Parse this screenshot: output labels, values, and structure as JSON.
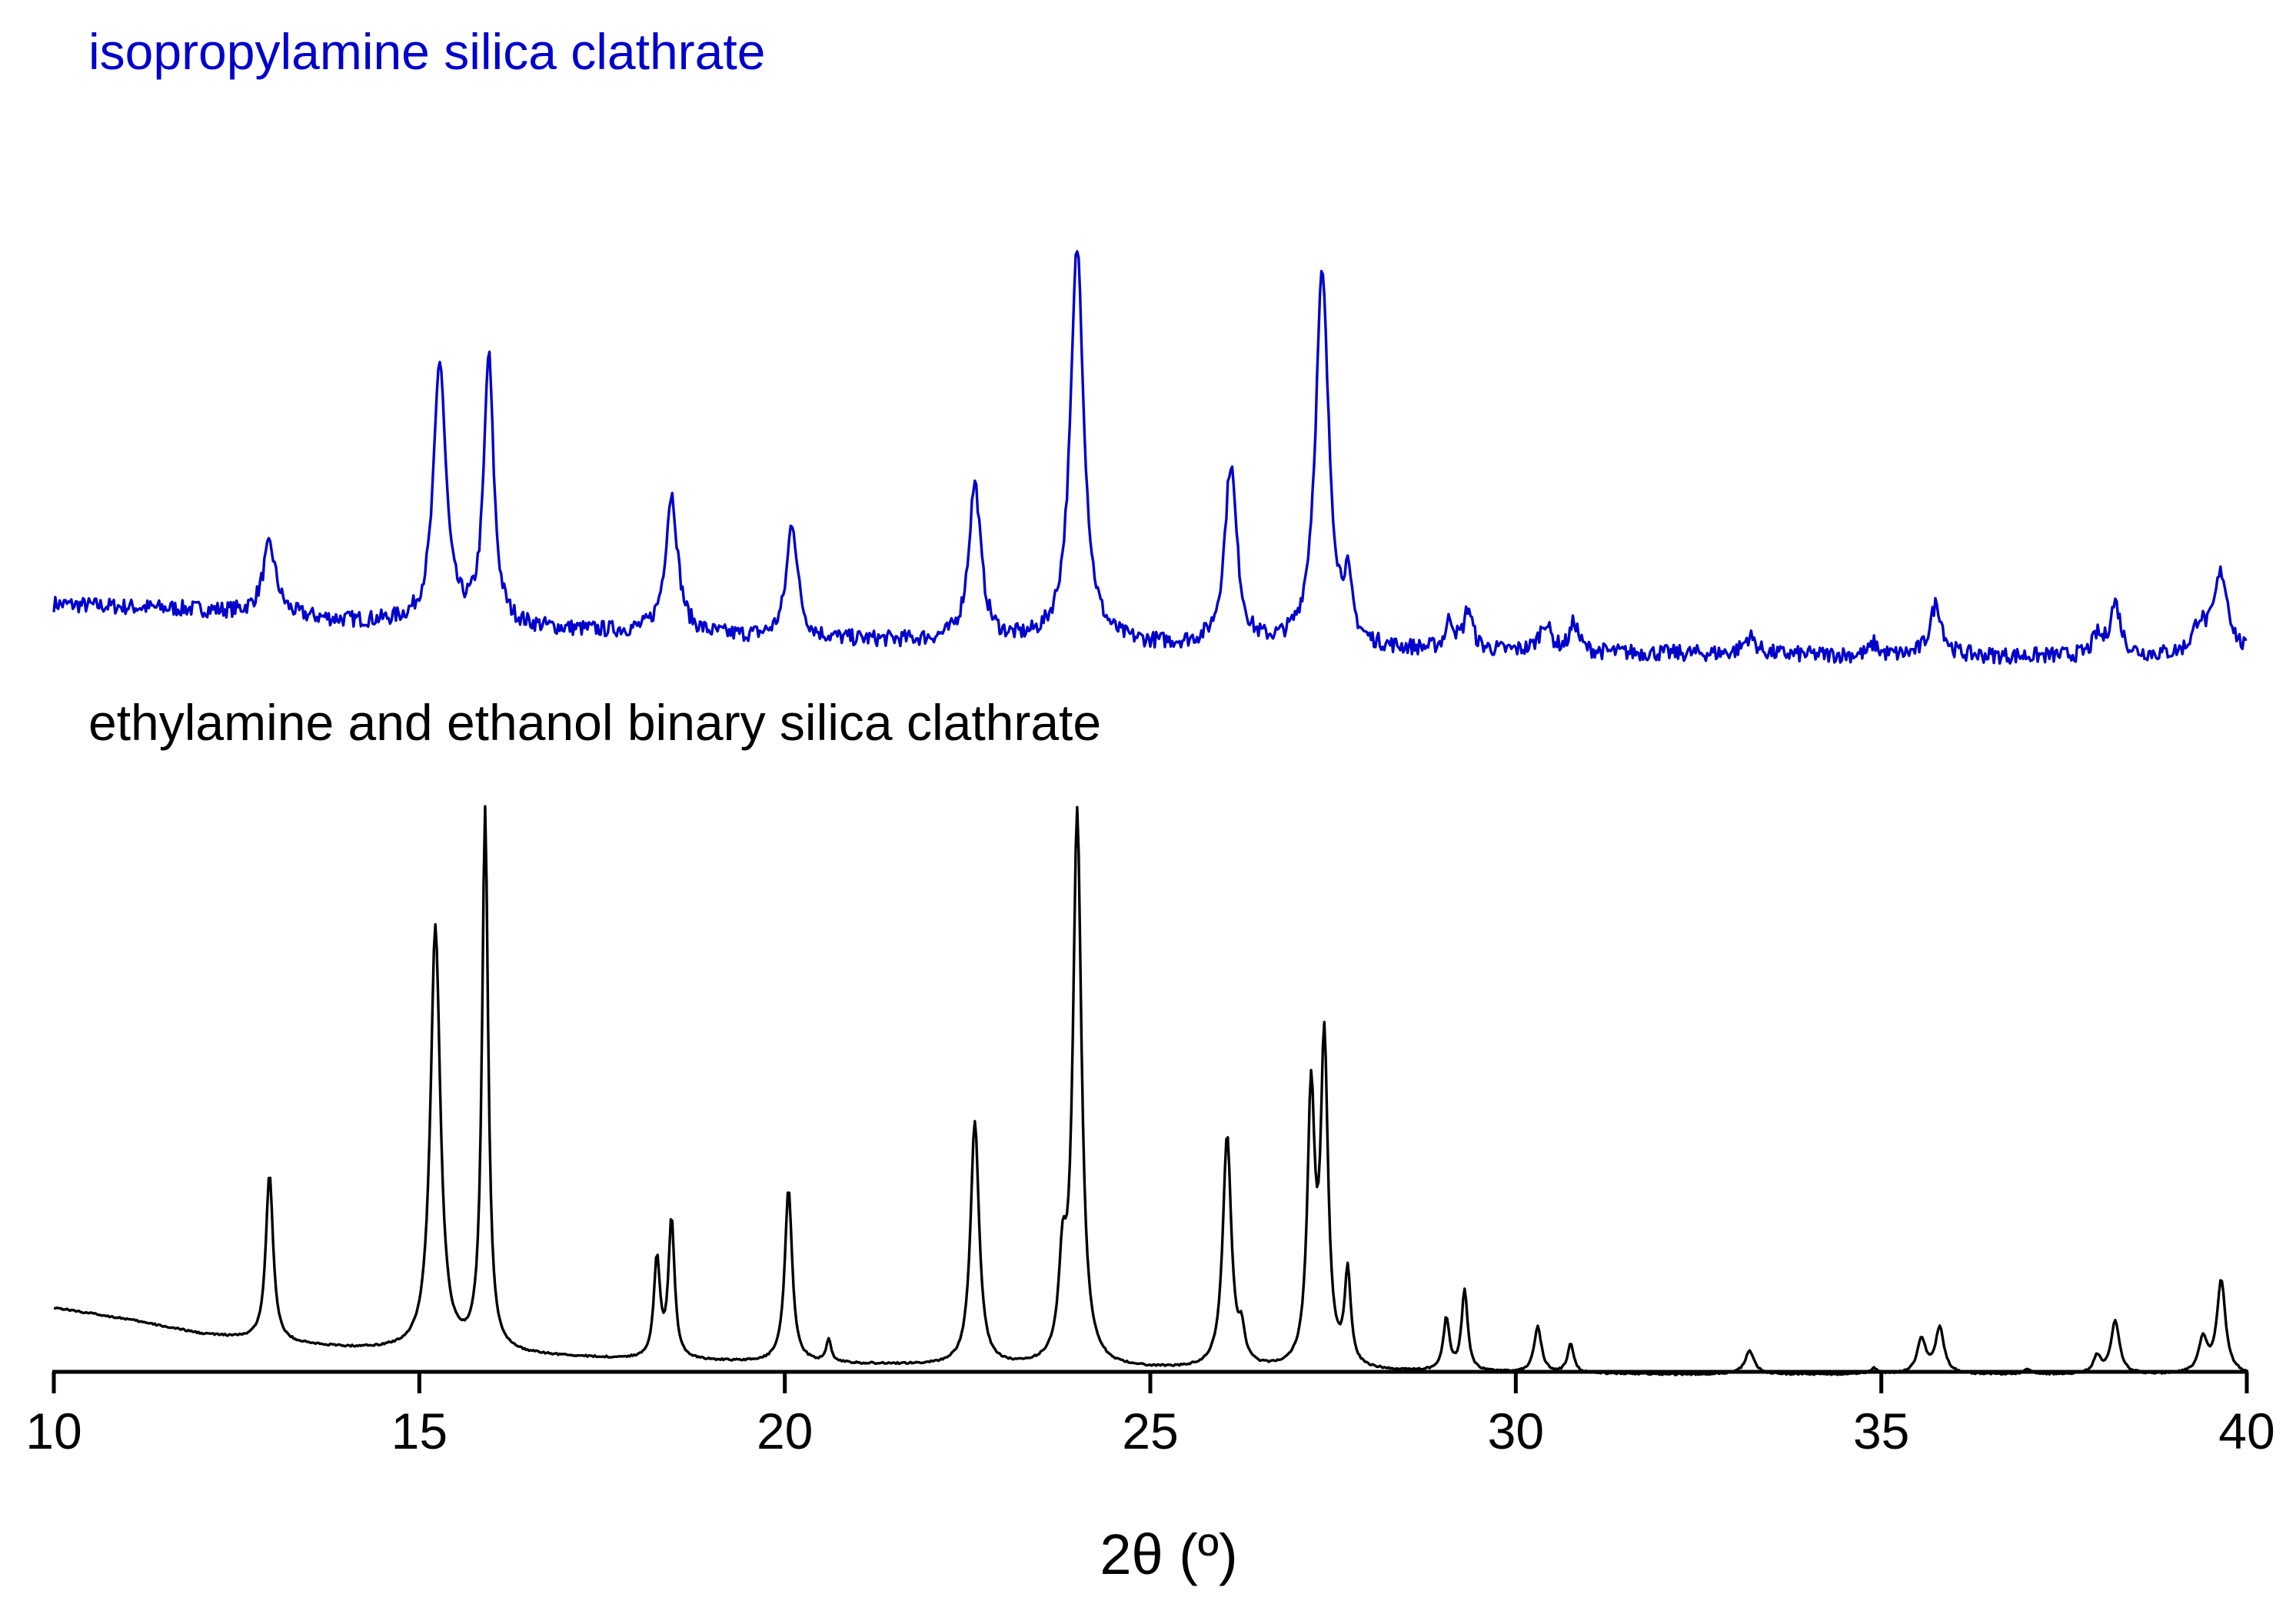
{
  "chart_data": {
    "type": "line",
    "xlabel": "2θ (º)",
    "ylabel": "",
    "xlim": [
      10,
      40
    ],
    "ylim": [
      0,
      2.3
    ],
    "x_ticks": [
      10,
      15,
      20,
      25,
      30,
      35,
      40
    ],
    "grid": false,
    "legend": "none",
    "series": [
      {
        "name": "isopropylamine silica clathrate",
        "color": "#0000cc",
        "baseline": [
          [
            10,
            1.34
          ],
          [
            12,
            1.33
          ],
          [
            14,
            1.31
          ],
          [
            16,
            1.3
          ],
          [
            18,
            1.29
          ],
          [
            20,
            1.28
          ],
          [
            24,
            1.27
          ],
          [
            28,
            1.26
          ],
          [
            32,
            1.255
          ],
          [
            36,
            1.25
          ],
          [
            40,
            1.25
          ]
        ],
        "peaks": [
          {
            "x": 12.95,
            "h": 0.12,
            "w": 0.11
          },
          {
            "x": 15.28,
            "h": 0.45,
            "w": 0.1
          },
          {
            "x": 15.95,
            "h": 0.46,
            "w": 0.08
          },
          {
            "x": 18.45,
            "h": 0.24,
            "w": 0.1
          },
          {
            "x": 20.1,
            "h": 0.2,
            "w": 0.09
          },
          {
            "x": 22.6,
            "h": 0.27,
            "w": 0.1
          },
          {
            "x": 24.0,
            "h": 0.68,
            "w": 0.11
          },
          {
            "x": 26.1,
            "h": 0.31,
            "w": 0.1
          },
          {
            "x": 27.35,
            "h": 0.64,
            "w": 0.11
          },
          {
            "x": 27.7,
            "h": 0.09,
            "w": 0.07
          },
          {
            "x": 29.1,
            "h": 0.05,
            "w": 0.07
          },
          {
            "x": 29.35,
            "h": 0.07,
            "w": 0.07
          },
          {
            "x": 30.4,
            "h": 0.05,
            "w": 0.09
          },
          {
            "x": 30.8,
            "h": 0.05,
            "w": 0.07
          },
          {
            "x": 33.2,
            "h": 0.03,
            "w": 0.1
          },
          {
            "x": 34.9,
            "h": 0.02,
            "w": 0.06
          },
          {
            "x": 35.75,
            "h": 0.09,
            "w": 0.1
          },
          {
            "x": 38.2,
            "h": 0.09,
            "w": 0.09
          },
          {
            "x": 37.95,
            "h": 0.03,
            "w": 0.07
          },
          {
            "x": 39.65,
            "h": 0.14,
            "w": 0.12
          },
          {
            "x": 39.35,
            "h": 0.05,
            "w": 0.1
          }
        ]
      },
      {
        "name": "ethylamine and ethanol binary silica clathrate",
        "color": "#000000",
        "baseline": [
          [
            10,
            0.13
          ],
          [
            11,
            0.11
          ],
          [
            12,
            0.085
          ],
          [
            13,
            0.07
          ],
          [
            14,
            0.06
          ],
          [
            16,
            0.05
          ],
          [
            18,
            0.04
          ],
          [
            20,
            0.035
          ],
          [
            24,
            0.025
          ],
          [
            28,
            0.02
          ],
          [
            32,
            0.015
          ],
          [
            36,
            0.015
          ],
          [
            40,
            0.015
          ]
        ],
        "peaks": [
          {
            "x": 12.95,
            "h": 0.29,
            "w": 0.06
          },
          {
            "x": 15.22,
            "h": 0.73,
            "w": 0.08
          },
          {
            "x": 15.9,
            "h": 0.93,
            "w": 0.05
          },
          {
            "x": 18.25,
            "h": 0.17,
            "w": 0.05
          },
          {
            "x": 18.45,
            "h": 0.24,
            "w": 0.05
          },
          {
            "x": 20.05,
            "h": 0.3,
            "w": 0.06
          },
          {
            "x": 20.6,
            "h": 0.04,
            "w": 0.04
          },
          {
            "x": 22.6,
            "h": 0.42,
            "w": 0.07
          },
          {
            "x": 23.8,
            "h": 0.15,
            "w": 0.06
          },
          {
            "x": 24.0,
            "h": 0.95,
            "w": 0.07
          },
          {
            "x": 26.05,
            "h": 0.4,
            "w": 0.07
          },
          {
            "x": 26.25,
            "h": 0.05,
            "w": 0.05
          },
          {
            "x": 27.2,
            "h": 0.46,
            "w": 0.06
          },
          {
            "x": 27.38,
            "h": 0.55,
            "w": 0.06
          },
          {
            "x": 27.7,
            "h": 0.16,
            "w": 0.05
          },
          {
            "x": 29.05,
            "h": 0.09,
            "w": 0.05
          },
          {
            "x": 29.3,
            "h": 0.14,
            "w": 0.05
          },
          {
            "x": 30.3,
            "h": 0.08,
            "w": 0.06
          },
          {
            "x": 30.75,
            "h": 0.05,
            "w": 0.05
          },
          {
            "x": 33.2,
            "h": 0.04,
            "w": 0.08
          },
          {
            "x": 34.9,
            "h": 0.01,
            "w": 0.06
          },
          {
            "x": 35.55,
            "h": 0.06,
            "w": 0.07
          },
          {
            "x": 35.8,
            "h": 0.08,
            "w": 0.07
          },
          {
            "x": 37.0,
            "h": 0.01,
            "w": 0.05
          },
          {
            "x": 37.95,
            "h": 0.03,
            "w": 0.06
          },
          {
            "x": 38.2,
            "h": 0.09,
            "w": 0.07
          },
          {
            "x": 39.4,
            "h": 0.06,
            "w": 0.07
          },
          {
            "x": 39.65,
            "h": 0.16,
            "w": 0.07
          }
        ]
      }
    ]
  }
}
